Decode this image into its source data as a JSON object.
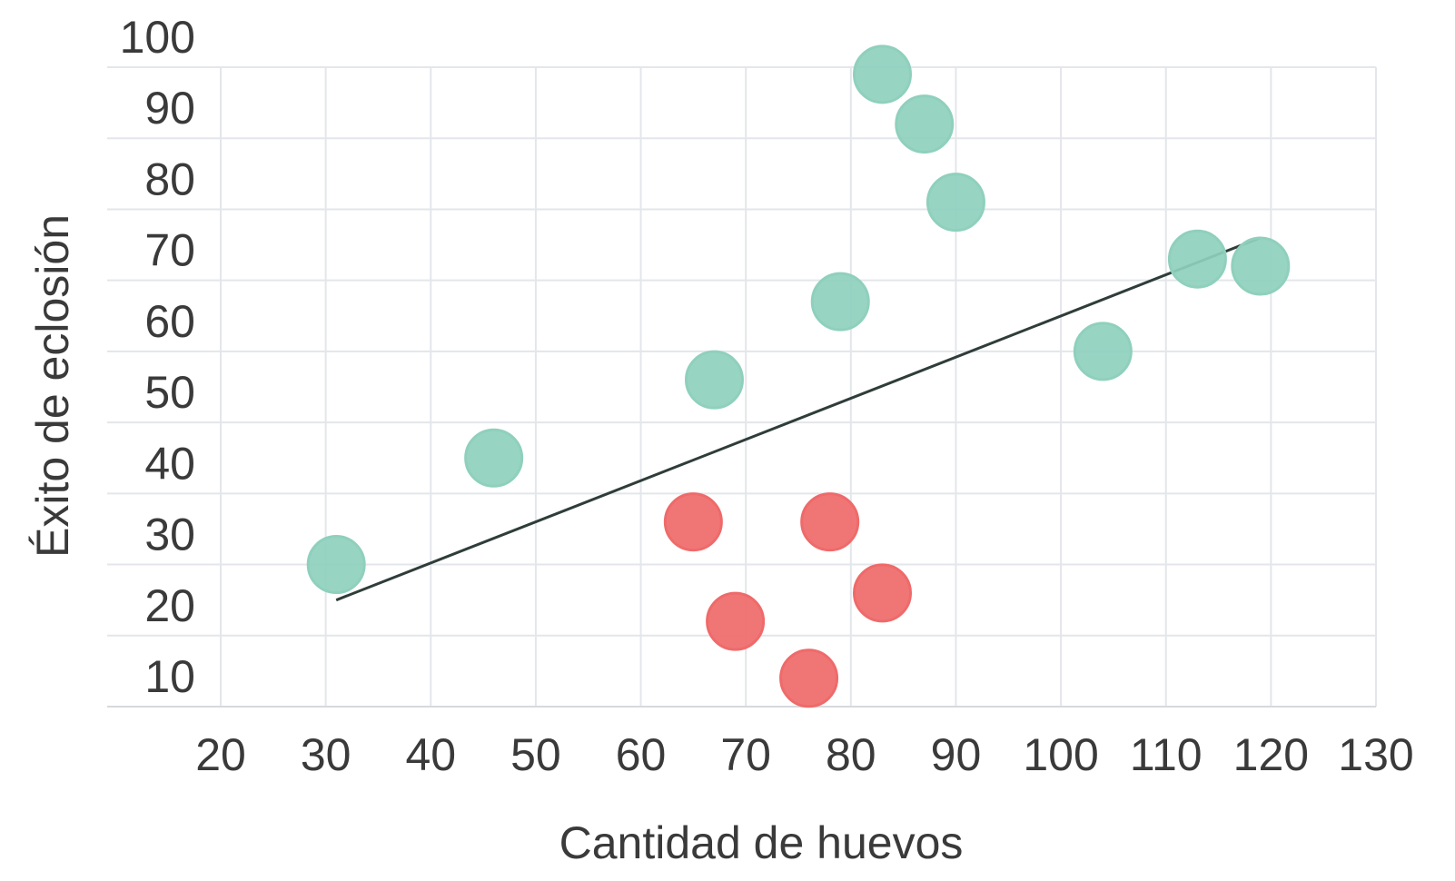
{
  "chart_data": {
    "type": "scatter",
    "title": "",
    "xlabel": "Cantidad de huevos",
    "ylabel": "Éxito de eclosión",
    "xlim": [
      20,
      130
    ],
    "ylim": [
      10,
      100
    ],
    "x_ticks": [
      "20",
      "30",
      "40",
      "50",
      "60",
      "70",
      "80",
      "90",
      "100",
      "110",
      "120",
      "130"
    ],
    "y_ticks": [
      "10",
      "20",
      "30",
      "40",
      "50",
      "60",
      "70",
      "80",
      "90",
      "100"
    ],
    "grid": true,
    "legend": "none",
    "series": [
      {
        "color": "#8fd0bd",
        "points": [
          {
            "x": 31,
            "y": 30
          },
          {
            "x": 46,
            "y": 45
          },
          {
            "x": 67,
            "y": 56
          },
          {
            "x": 79,
            "y": 67
          },
          {
            "x": 83,
            "y": 99
          },
          {
            "x": 87,
            "y": 92
          },
          {
            "x": 90,
            "y": 81
          },
          {
            "x": 104,
            "y": 60
          },
          {
            "x": 113,
            "y": 73
          },
          {
            "x": 119,
            "y": 72
          }
        ]
      },
      {
        "color": "#ef6a6a",
        "points": [
          {
            "x": 65,
            "y": 36
          },
          {
            "x": 69,
            "y": 22
          },
          {
            "x": 76,
            "y": 14
          },
          {
            "x": 78,
            "y": 36
          },
          {
            "x": 83,
            "y": 26
          }
        ]
      }
    ],
    "trendline": {
      "color": "#2f3d3a",
      "from": {
        "x": 31,
        "y": 25
      },
      "to": {
        "x": 119,
        "y": 76
      }
    }
  }
}
